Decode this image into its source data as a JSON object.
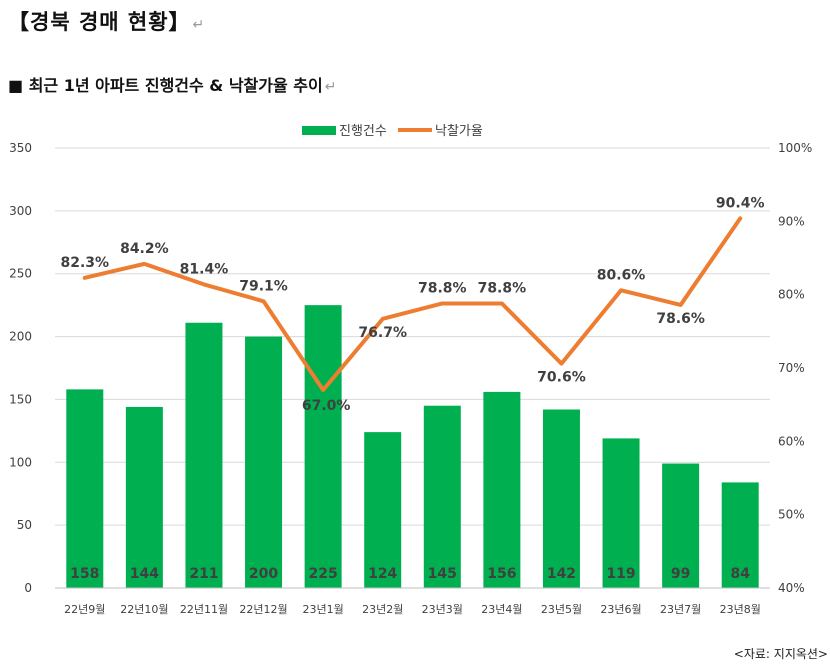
{
  "heading": "【경북 경매 현황】",
  "subheading": "■ 최근 1년 아파트 진행건수 & 낙찰가율 추이",
  "paragraph_mark": "↵",
  "source_note": "<자료: 지지옥션>",
  "colors": {
    "bar": "#00b050",
    "line": "#ed7d31",
    "grid": "#d9d9d9",
    "axis_text": "#404040",
    "bar_label": "#404040"
  },
  "chart_data": {
    "type": "bar+line",
    "categories": [
      "22년9월",
      "22년10월",
      "22년11월",
      "22년12월",
      "23년1월",
      "23년2월",
      "23년3월",
      "23년4월",
      "23년5월",
      "23년6월",
      "23년7월",
      "23년8월"
    ],
    "series": [
      {
        "name": "진행건수",
        "type": "bar",
        "axis": "left",
        "values": [
          158,
          144,
          211,
          200,
          225,
          124,
          145,
          156,
          142,
          119,
          99,
          84
        ],
        "labels": [
          "158",
          "144",
          "211",
          "200",
          "225",
          "124",
          "145",
          "156",
          "142",
          "119",
          "99",
          "84"
        ]
      },
      {
        "name": "낙찰가율",
        "type": "line",
        "axis": "right",
        "values": [
          82.3,
          84.2,
          81.4,
          79.1,
          67.0,
          76.7,
          78.8,
          78.8,
          70.6,
          80.6,
          78.6,
          90.4
        ],
        "labels": [
          "82.3%",
          "84.2%",
          "81.4%",
          "79.1%",
          "67.0%",
          "76.7%",
          "78.8%",
          "78.8%",
          "70.6%",
          "80.6%",
          "78.6%",
          "90.4%"
        ]
      }
    ],
    "y_left": {
      "min": 0,
      "max": 350,
      "ticks": [
        0,
        50,
        100,
        150,
        200,
        250,
        300,
        350
      ]
    },
    "y_right": {
      "min": 40,
      "max": 100,
      "ticks": [
        40,
        50,
        60,
        70,
        80,
        90,
        100
      ],
      "tick_labels": [
        "40%",
        "50%",
        "60%",
        "70%",
        "80%",
        "90%",
        "100%"
      ]
    },
    "grid": true,
    "legend_position": "top-center"
  }
}
